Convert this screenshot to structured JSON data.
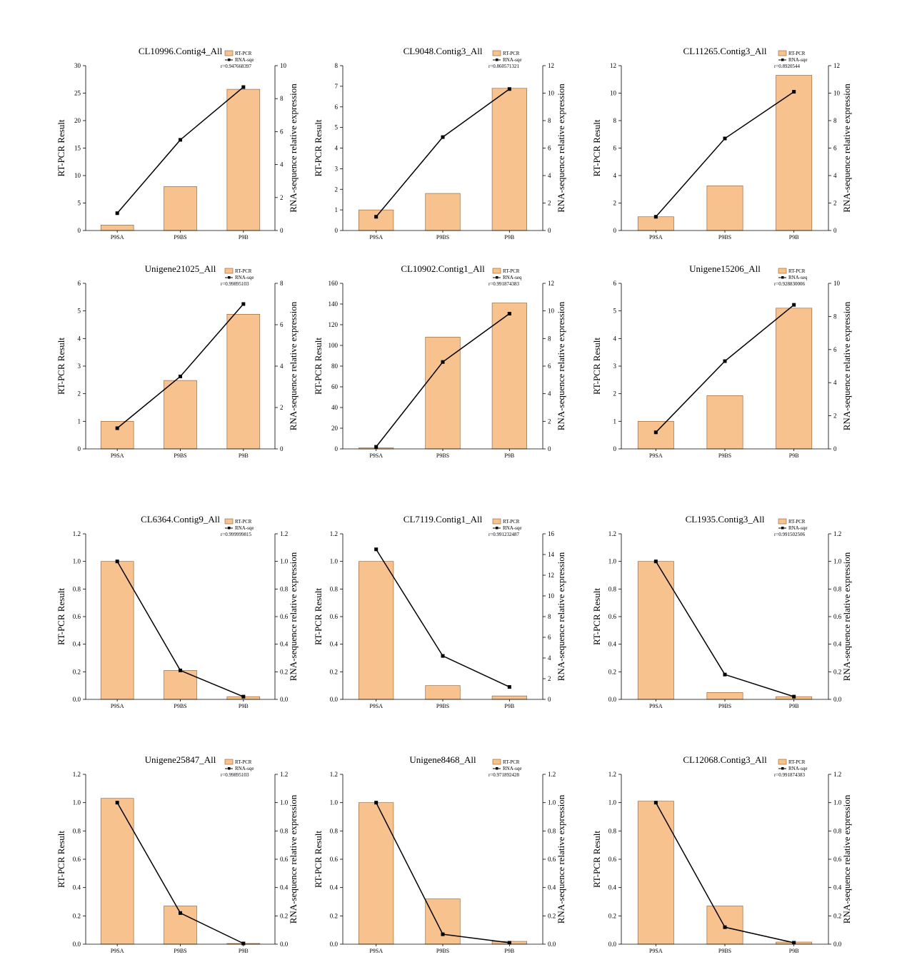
{
  "colors": {
    "bar": "#f8c28f",
    "bar_edge": "#8a5a2b",
    "line": "#000000"
  },
  "chart_data": [
    {
      "type": "bar+line",
      "title": "CL10996.Contig4_All",
      "categories": [
        "P9SA",
        "P9BS",
        "P9B"
      ],
      "ylabel_left": "RT-PCR Result",
      "ylabel_right": "RNA-sequence relative expression",
      "yticks_left": [
        0,
        5,
        10,
        15,
        20,
        25,
        30
      ],
      "yticks_right": [
        0,
        2,
        4,
        6,
        8,
        10
      ],
      "series": [
        {
          "name": "RT-PCR",
          "type": "bar",
          "axis": "left",
          "values": [
            1.0,
            8.0,
            25.7
          ]
        },
        {
          "name": "RNA-sqe",
          "type": "line",
          "axis": "right",
          "values": [
            1.05,
            5.5,
            8.7
          ]
        }
      ],
      "annotation": "r=0.947668397"
    },
    {
      "type": "bar+line",
      "title": "CL9048.Contig3_All",
      "categories": [
        "P9SA",
        "P9BS",
        "P9B"
      ],
      "ylabel_left": "RT-PCR Result",
      "ylabel_right": "RNA-sequence relative expression",
      "yticks_left": [
        0,
        1,
        2,
        3,
        4,
        5,
        6,
        7,
        8
      ],
      "yticks_right": [
        0,
        2,
        4,
        6,
        8,
        10,
        12
      ],
      "series": [
        {
          "name": "RT-PCR",
          "type": "bar",
          "axis": "left",
          "values": [
            1.0,
            1.8,
            6.9
          ]
        },
        {
          "name": "RNA-sqe",
          "type": "line",
          "axis": "right",
          "values": [
            1.0,
            6.8,
            10.3
          ]
        }
      ],
      "annotation": "r=0.860571321"
    },
    {
      "type": "bar+line",
      "title": "CL11265.Contig3_All",
      "categories": [
        "P9SA",
        "P9BS",
        "P9B"
      ],
      "ylabel_left": "RT-PCR Result",
      "ylabel_right": "RNA-sequence relative expression",
      "yticks_left": [
        0,
        2,
        4,
        6,
        8,
        10,
        12
      ],
      "yticks_right": [
        0,
        2,
        4,
        6,
        8,
        10,
        12
      ],
      "series": [
        {
          "name": "RT-PCR",
          "type": "bar",
          "axis": "left",
          "values": [
            1.0,
            3.25,
            11.3
          ]
        },
        {
          "name": "RNA-sqe",
          "type": "line",
          "axis": "right",
          "values": [
            1.0,
            6.7,
            10.1
          ]
        }
      ],
      "annotation": "r=0.8920544"
    },
    {
      "type": "bar+line",
      "title": "Unigene21025_All",
      "categories": [
        "P9SA",
        "P9BS",
        "P9B"
      ],
      "ylabel_left": "RT-PCR Result",
      "ylabel_right": "RNA-sequence relative expression",
      "yticks_left": [
        0,
        1,
        2,
        3,
        4,
        5,
        6
      ],
      "yticks_right": [
        0,
        2,
        4,
        6,
        8
      ],
      "series": [
        {
          "name": "RT-PCR",
          "type": "bar",
          "axis": "left",
          "values": [
            1.0,
            2.48,
            4.88
          ]
        },
        {
          "name": "RNA-sqe",
          "type": "line",
          "axis": "right",
          "values": [
            1.0,
            3.5,
            7.0
          ]
        }
      ],
      "annotation": "r=0.99895103"
    },
    {
      "type": "bar+line",
      "title": "CL10902.Contig1_All",
      "categories": [
        "P9SA",
        "P9BS",
        "P9B"
      ],
      "ylabel_left": "RT-PCR Result",
      "ylabel_right": "RNA-sequence relative expression",
      "yticks_left": [
        0,
        20,
        40,
        60,
        80,
        100,
        120,
        140,
        160
      ],
      "yticks_right": [
        0,
        2,
        4,
        6,
        8,
        10,
        12
      ],
      "series": [
        {
          "name": "RT-PCR",
          "type": "bar",
          "axis": "left",
          "values": [
            1.0,
            108.0,
            141.0
          ]
        },
        {
          "name": "RNA-seq",
          "type": "line",
          "axis": "right",
          "values": [
            0.15,
            6.3,
            9.8
          ]
        }
      ],
      "annotation": "r=0.991874383"
    },
    {
      "type": "bar+line",
      "title": "Unigene15206_All",
      "categories": [
        "P9SA",
        "P9BS",
        "P9B"
      ],
      "ylabel_left": "RT-PCR Result",
      "ylabel_right": "RNA-sequence relative expression",
      "yticks_left": [
        0,
        1,
        2,
        3,
        4,
        5,
        6
      ],
      "yticks_right": [
        0,
        2,
        4,
        6,
        8,
        10
      ],
      "series": [
        {
          "name": "RT-PCR",
          "type": "bar",
          "axis": "left",
          "values": [
            1.0,
            1.93,
            5.1
          ]
        },
        {
          "name": "RNA-seq",
          "type": "line",
          "axis": "right",
          "values": [
            1.0,
            5.3,
            8.7
          ]
        }
      ],
      "annotation": "r=0.928830006"
    },
    {
      "type": "bar+line",
      "title": "CL6364.Contig9_All",
      "categories": [
        "P9SA",
        "P9BS",
        "P9B"
      ],
      "ylabel_left": "RT-PCR Result",
      "ylabel_right": "RNA-sequence relative expression",
      "yticks_left": [
        0.0,
        0.2,
        0.4,
        0.6,
        0.8,
        1.0,
        1.2
      ],
      "yticks_right": [
        0.0,
        0.2,
        0.4,
        0.6,
        0.8,
        1.0,
        1.2
      ],
      "series": [
        {
          "name": "RT-PCR",
          "type": "bar",
          "axis": "left",
          "values": [
            1.0,
            0.21,
            0.02
          ]
        },
        {
          "name": "RNA-sqe",
          "type": "line",
          "axis": "right",
          "values": [
            1.0,
            0.21,
            0.02
          ]
        }
      ],
      "annotation": "r=0.999999815"
    },
    {
      "type": "bar+line",
      "title": "CL7119.Contig1_All",
      "categories": [
        "P9SA",
        "P9BS",
        "P9B"
      ],
      "ylabel_left": "RT-PCR Result",
      "ylabel_right": "RNA-sequence relative expression",
      "yticks_left": [
        0.0,
        0.2,
        0.4,
        0.6,
        0.8,
        1.0,
        1.2
      ],
      "yticks_right": [
        0,
        2,
        4,
        6,
        8,
        10,
        12,
        14,
        16
      ],
      "series": [
        {
          "name": "RT-PCR",
          "type": "bar",
          "axis": "left",
          "values": [
            1.0,
            0.1,
            0.025
          ]
        },
        {
          "name": "RNA-sqe",
          "type": "line",
          "axis": "right",
          "values": [
            14.5,
            4.2,
            1.2
          ]
        }
      ],
      "annotation": "r=0.991232487"
    },
    {
      "type": "bar+line",
      "title": "CL1935.Contig3_All",
      "categories": [
        "P9SA",
        "P9BS",
        "P9B"
      ],
      "ylabel_left": "RT-PCR Result",
      "ylabel_right": "RNA-sequence relative expression",
      "yticks_left": [
        0.0,
        0.2,
        0.4,
        0.6,
        0.8,
        1.0,
        1.2
      ],
      "yticks_right": [
        0.0,
        0.2,
        0.4,
        0.6,
        0.8,
        1.0,
        1.2
      ],
      "series": [
        {
          "name": "RT-PCR",
          "type": "bar",
          "axis": "left",
          "values": [
            1.0,
            0.05,
            0.02
          ]
        },
        {
          "name": "RNA-sqe",
          "type": "line",
          "axis": "right",
          "values": [
            1.0,
            0.18,
            0.02
          ]
        }
      ],
      "annotation": "r=0.991502506"
    },
    {
      "type": "bar+line",
      "title": "Unigene25847_All",
      "categories": [
        "P9SA",
        "P9BS",
        "P9B"
      ],
      "ylabel_left": "RT-PCR Result",
      "ylabel_right": "RNA-sequence relative expression",
      "yticks_left": [
        0.0,
        0.2,
        0.4,
        0.6,
        0.8,
        1.0,
        1.2
      ],
      "yticks_right": [
        0.0,
        0.2,
        0.4,
        0.6,
        0.8,
        1.0,
        1.2
      ],
      "series": [
        {
          "name": "RT-PCR",
          "type": "bar",
          "axis": "left",
          "values": [
            1.03,
            0.27,
            0.005
          ]
        },
        {
          "name": "RNA-sqe",
          "type": "line",
          "axis": "right",
          "values": [
            1.0,
            0.22,
            0.005
          ]
        }
      ],
      "annotation": "r=0.99895103"
    },
    {
      "type": "bar+line",
      "title": "Unigene8468_All",
      "categories": [
        "P9SA",
        "P9BS",
        "P9B"
      ],
      "ylabel_left": "RT-PCR Result",
      "ylabel_right": "RNA-sequence relative expression",
      "yticks_left": [
        0.0,
        0.2,
        0.4,
        0.6,
        0.8,
        1.0,
        1.2
      ],
      "yticks_right": [
        0.0,
        0.2,
        0.4,
        0.6,
        0.8,
        1.0,
        1.2
      ],
      "series": [
        {
          "name": "RT-PCR",
          "type": "bar",
          "axis": "left",
          "values": [
            1.0,
            0.32,
            0.02
          ]
        },
        {
          "name": "RNA-sqe",
          "type": "line",
          "axis": "right",
          "values": [
            1.0,
            0.07,
            0.01
          ]
        }
      ],
      "annotation": "r=0.971892428"
    },
    {
      "type": "bar+line",
      "title": "CL12068.Contig3_All",
      "categories": [
        "P9SA",
        "P9BS",
        "P9B"
      ],
      "ylabel_left": "RT-PCR Result",
      "ylabel_right": "RNA-sequence relative expression",
      "yticks_left": [
        0.0,
        0.2,
        0.4,
        0.6,
        0.8,
        1.0,
        1.2
      ],
      "yticks_right": [
        0.0,
        0.2,
        0.4,
        0.6,
        0.8,
        1.0,
        1.2
      ],
      "series": [
        {
          "name": "RT-PCR",
          "type": "bar",
          "axis": "left",
          "values": [
            1.01,
            0.27,
            0.015
          ]
        },
        {
          "name": "RNA-sqe",
          "type": "line",
          "axis": "right",
          "values": [
            1.0,
            0.12,
            0.01
          ]
        }
      ],
      "annotation": "r=0.991874383"
    }
  ]
}
